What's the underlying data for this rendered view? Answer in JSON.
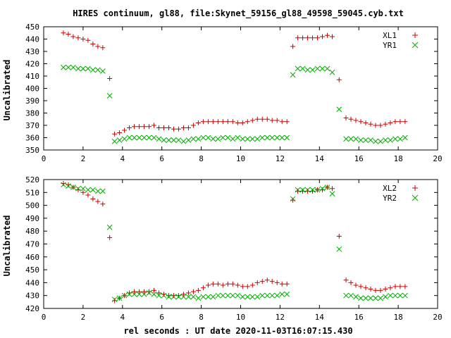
{
  "chart_data": {
    "title": "HIRES continuum, gl88, file:Skynet_59156_gl88_49598_59045.cyb.txt",
    "xlabel": "rel seconds : UT date 2020-11-03T16:07:15.430",
    "panels": [
      {
        "type": "scatter",
        "ylabel": "Uncalibrated",
        "xlim": [
          0,
          20
        ],
        "ylim": [
          350,
          450
        ],
        "x_ticks": [
          0,
          2,
          4,
          6,
          8,
          10,
          12,
          14,
          16,
          18,
          20
        ],
        "y_ticks": [
          350,
          360,
          370,
          380,
          390,
          400,
          410,
          420,
          430,
          440,
          450
        ],
        "x": [
          1.0,
          1.25,
          1.5,
          1.75,
          2.0,
          2.25,
          2.5,
          2.75,
          3.0,
          3.35,
          3.6,
          3.85,
          4.1,
          4.35,
          4.6,
          4.85,
          5.1,
          5.35,
          5.6,
          5.85,
          6.1,
          6.35,
          6.6,
          6.85,
          7.1,
          7.35,
          7.6,
          7.85,
          8.1,
          8.35,
          8.6,
          8.85,
          9.1,
          9.35,
          9.6,
          9.85,
          10.1,
          10.35,
          10.6,
          10.85,
          11.1,
          11.35,
          11.6,
          11.85,
          12.1,
          12.35,
          12.65,
          12.9,
          13.15,
          13.4,
          13.65,
          13.9,
          14.15,
          14.4,
          14.65,
          15.0,
          15.35,
          15.6,
          15.85,
          16.1,
          16.35,
          16.6,
          16.85,
          17.1,
          17.35,
          17.6,
          17.85,
          18.1,
          18.35
        ],
        "series": [
          {
            "name": "XL1",
            "color": "#cc0000",
            "marker": "plus",
            "values": [
              445,
              444,
              442,
              441,
              440,
              439,
              436,
              434,
              433,
              408,
              363,
              364,
              366,
              368,
              369,
              369,
              369,
              369,
              370,
              368,
              368,
              368,
              367,
              367,
              368,
              368,
              370,
              372,
              373,
              373,
              373,
              373,
              373,
              373,
              373,
              372,
              372,
              373,
              374,
              375,
              375,
              375,
              374,
              374,
              373,
              373,
              434,
              441,
              441,
              441,
              441,
              441,
              442,
              443,
              442,
              407,
              376,
              375,
              374,
              373,
              372,
              371,
              370,
              370,
              371,
              372,
              373,
              373,
              373
            ]
          },
          {
            "name": "YR1",
            "color": "#00aa00",
            "marker": "cross",
            "values": [
              417,
              417,
              417,
              416,
              416,
              416,
              415,
              415,
              414,
              394,
              357,
              358,
              359,
              360,
              360,
              360,
              360,
              360,
              360,
              359,
              358,
              358,
              358,
              358,
              357,
              358,
              359,
              359,
              360,
              360,
              359,
              359,
              360,
              360,
              359,
              360,
              359,
              359,
              359,
              359,
              360,
              360,
              360,
              360,
              360,
              360,
              411,
              416,
              416,
              415,
              415,
              416,
              416,
              416,
              413,
              383,
              359,
              359,
              359,
              358,
              358,
              358,
              357,
              357,
              358,
              358,
              359,
              359,
              360
            ]
          }
        ]
      },
      {
        "type": "scatter",
        "ylabel": "Uncalibrated",
        "xlim": [
          0,
          20
        ],
        "ylim": [
          420,
          520
        ],
        "x_ticks": [
          0,
          2,
          4,
          6,
          8,
          10,
          12,
          14,
          16,
          18,
          20
        ],
        "y_ticks": [
          420,
          430,
          440,
          450,
          460,
          470,
          480,
          490,
          500,
          510,
          520
        ],
        "x": [
          1.0,
          1.25,
          1.5,
          1.75,
          2.0,
          2.25,
          2.5,
          2.75,
          3.0,
          3.35,
          3.6,
          3.85,
          4.1,
          4.35,
          4.6,
          4.85,
          5.1,
          5.35,
          5.6,
          5.85,
          6.1,
          6.35,
          6.6,
          6.85,
          7.1,
          7.35,
          7.6,
          7.85,
          8.1,
          8.35,
          8.6,
          8.85,
          9.1,
          9.35,
          9.6,
          9.85,
          10.1,
          10.35,
          10.6,
          10.85,
          11.1,
          11.35,
          11.6,
          11.85,
          12.1,
          12.35,
          12.65,
          12.9,
          13.15,
          13.4,
          13.65,
          13.9,
          14.15,
          14.4,
          14.65,
          15.0,
          15.35,
          15.6,
          15.85,
          16.1,
          16.35,
          16.6,
          16.85,
          17.1,
          17.35,
          17.6,
          17.85,
          18.1,
          18.35
        ],
        "series": [
          {
            "name": "XL2",
            "color": "#cc0000",
            "marker": "plus",
            "values": [
              517,
              516,
              514,
              512,
              510,
              508,
              505,
              503,
              501,
              475,
              426,
              428,
              430,
              432,
              433,
              433,
              433,
              433,
              434,
              432,
              431,
              430,
              430,
              430,
              431,
              432,
              433,
              434,
              436,
              438,
              439,
              439,
              438,
              439,
              439,
              438,
              437,
              437,
              438,
              440,
              441,
              442,
              441,
              440,
              439,
              439,
              504,
              511,
              511,
              511,
              511,
              512,
              512,
              514,
              513,
              476,
              442,
              440,
              438,
              437,
              436,
              435,
              434,
              434,
              435,
              436,
              437,
              437,
              437
            ]
          },
          {
            "name": "YR2",
            "color": "#00aa00",
            "marker": "cross",
            "values": [
              516,
              515,
              514,
              513,
              513,
              512,
              512,
              511,
              511,
              483,
              427,
              428,
              430,
              431,
              431,
              431,
              431,
              432,
              431,
              430,
              430,
              429,
              429,
              429,
              429,
              429,
              429,
              428,
              429,
              429,
              429,
              430,
              430,
              430,
              430,
              430,
              429,
              429,
              429,
              429,
              430,
              430,
              430,
              430,
              431,
              431,
              505,
              512,
              512,
              512,
              512,
              512,
              513,
              514,
              509,
              466,
              430,
              430,
              429,
              428,
              428,
              428,
              428,
              428,
              429,
              430,
              430,
              430,
              430
            ]
          }
        ]
      }
    ]
  }
}
